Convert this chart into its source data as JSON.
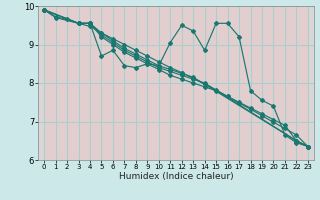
{
  "xlabel": "Humidex (Indice chaleur)",
  "bg_color": "#cce8e8",
  "grid_major_color": "#aacfcf",
  "grid_minor_color": "#f0c8c8",
  "line_color": "#1a7870",
  "xlim": [
    -0.5,
    23.5
  ],
  "ylim": [
    6,
    10
  ],
  "yticks": [
    6,
    7,
    8,
    9,
    10
  ],
  "xticks": [
    0,
    1,
    2,
    3,
    4,
    5,
    6,
    7,
    8,
    9,
    10,
    11,
    12,
    13,
    14,
    15,
    16,
    17,
    18,
    19,
    20,
    21,
    22,
    23
  ],
  "series": [
    {
      "x": [
        0,
        1,
        3,
        4,
        5,
        6,
        7,
        8,
        9,
        10,
        11,
        12,
        13,
        14,
        15,
        16,
        17,
        18,
        19,
        20,
        21,
        22,
        23
      ],
      "y": [
        9.9,
        9.7,
        9.55,
        9.55,
        8.7,
        8.85,
        8.45,
        8.4,
        8.5,
        8.45,
        9.05,
        9.5,
        9.35,
        8.85,
        9.55,
        9.55,
        9.2,
        7.8,
        7.55,
        7.4,
        6.65,
        6.45,
        6.35
      ]
    },
    {
      "x": [
        0,
        3,
        4,
        5,
        6,
        7,
        8,
        9,
        10,
        11,
        12,
        13,
        22,
        23
      ],
      "y": [
        9.9,
        9.55,
        9.55,
        9.3,
        9.1,
        8.9,
        8.75,
        8.6,
        8.45,
        8.35,
        8.25,
        8.15,
        6.5,
        6.35
      ]
    },
    {
      "x": [
        0,
        3,
        4,
        5,
        6,
        7,
        8,
        9,
        10,
        11,
        12,
        13,
        14,
        22,
        23
      ],
      "y": [
        9.9,
        9.55,
        9.55,
        9.25,
        9.05,
        8.85,
        8.7,
        8.55,
        8.4,
        8.3,
        8.2,
        8.1,
        8.0,
        6.5,
        6.35
      ]
    },
    {
      "x": [
        0,
        3,
        4,
        5,
        6,
        7,
        8,
        9,
        10,
        11,
        12,
        13,
        14,
        15,
        16,
        17,
        18,
        19,
        20,
        21,
        22,
        23
      ],
      "y": [
        9.9,
        9.55,
        9.55,
        9.2,
        9.0,
        8.8,
        8.65,
        8.5,
        8.35,
        8.2,
        8.1,
        8.0,
        7.9,
        7.8,
        7.65,
        7.5,
        7.35,
        7.2,
        7.05,
        6.9,
        6.5,
        6.35
      ]
    },
    {
      "x": [
        0,
        1,
        2,
        3,
        4,
        5,
        6,
        7,
        8,
        9,
        10,
        11,
        12,
        13,
        14,
        15,
        16,
        17,
        18,
        19,
        20,
        21,
        22,
        23
      ],
      "y": [
        9.9,
        9.72,
        9.65,
        9.55,
        9.47,
        9.3,
        9.15,
        9.0,
        8.85,
        8.7,
        8.55,
        8.4,
        8.27,
        8.12,
        7.97,
        7.82,
        7.65,
        7.48,
        7.32,
        7.15,
        6.98,
        6.82,
        6.65,
        6.35
      ]
    }
  ]
}
